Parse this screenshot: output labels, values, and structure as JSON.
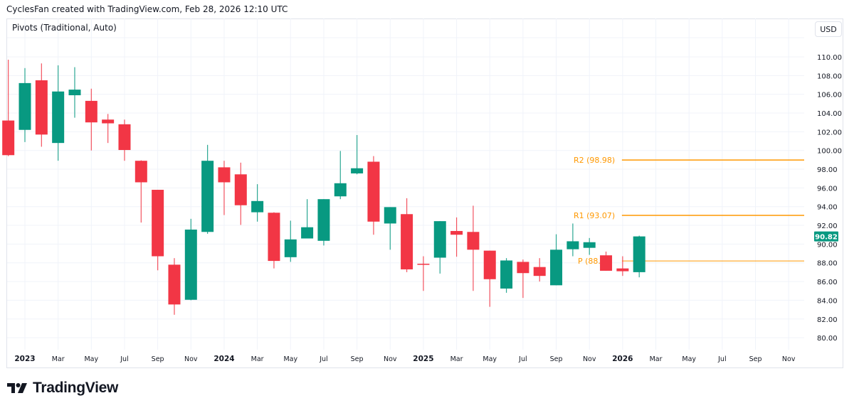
{
  "header": {
    "attribution": "CyclesFan created with TradingView.com, Feb 28, 2026 12:10 UTC"
  },
  "indicator": {
    "label": "Pivots (Traditional, Auto)"
  },
  "price_axis": {
    "currency": "USD"
  },
  "branding": {
    "logo_text": "TradingView"
  },
  "colors": {
    "up": "#089981",
    "down": "#F23645",
    "pivot": "#FF9800",
    "grid": "#f0f3fa",
    "text": "#131722"
  },
  "chart_data": {
    "type": "candlestick",
    "timeframe": "monthly",
    "ylim": [
      79,
      111
    ],
    "grid": true,
    "y_ticks": [
      "80.00",
      "82.00",
      "84.00",
      "86.00",
      "88.00",
      "90.00",
      "92.00",
      "94.00",
      "96.00",
      "98.00",
      "100.00",
      "102.00",
      "104.00",
      "106.00",
      "108.00",
      "110.00"
    ],
    "x_ticks": [
      {
        "month": "2023-01",
        "label": "2023"
      },
      {
        "month": "2023-03",
        "label": "Mar"
      },
      {
        "month": "2023-05",
        "label": "May"
      },
      {
        "month": "2023-07",
        "label": "Jul"
      },
      {
        "month": "2023-09",
        "label": "Sep"
      },
      {
        "month": "2023-11",
        "label": "Nov"
      },
      {
        "month": "2024-01",
        "label": "2024"
      },
      {
        "month": "2024-03",
        "label": "Mar"
      },
      {
        "month": "2024-05",
        "label": "May"
      },
      {
        "month": "2024-07",
        "label": "Jul"
      },
      {
        "month": "2024-09",
        "label": "Sep"
      },
      {
        "month": "2024-11",
        "label": "Nov"
      },
      {
        "month": "2025-01",
        "label": "2025"
      },
      {
        "month": "2025-03",
        "label": "Mar"
      },
      {
        "month": "2025-05",
        "label": "May"
      },
      {
        "month": "2025-07",
        "label": "Jul"
      },
      {
        "month": "2025-09",
        "label": "Sep"
      },
      {
        "month": "2025-11",
        "label": "Nov"
      },
      {
        "month": "2026-01",
        "label": "2026"
      },
      {
        "month": "2026-03",
        "label": "Mar"
      },
      {
        "month": "2026-05",
        "label": "May"
      },
      {
        "month": "2026-07",
        "label": "Jul"
      },
      {
        "month": "2026-09",
        "label": "Sep"
      },
      {
        "month": "2026-11",
        "label": "Nov"
      }
    ],
    "x_range": [
      "2022-12",
      "2026-12"
    ],
    "candles": [
      {
        "month": "2022-12",
        "o": 103.2,
        "h": 109.7,
        "l": 99.4,
        "c": 99.5
      },
      {
        "month": "2023-01",
        "o": 102.2,
        "h": 108.8,
        "l": 100.9,
        "c": 107.2
      },
      {
        "month": "2023-02",
        "o": 107.5,
        "h": 109.3,
        "l": 100.4,
        "c": 101.7
      },
      {
        "month": "2023-03",
        "o": 100.8,
        "h": 109.1,
        "l": 98.9,
        "c": 106.3
      },
      {
        "month": "2023-04",
        "o": 105.9,
        "h": 108.9,
        "l": 103.5,
        "c": 106.5
      },
      {
        "month": "2023-05",
        "o": 105.3,
        "h": 106.6,
        "l": 100.0,
        "c": 103.0
      },
      {
        "month": "2023-06",
        "o": 103.3,
        "h": 103.9,
        "l": 100.8,
        "c": 102.9
      },
      {
        "month": "2023-07",
        "o": 102.8,
        "h": 103.3,
        "l": 98.9,
        "c": 100.05
      },
      {
        "month": "2023-08",
        "o": 98.9,
        "h": 98.95,
        "l": 92.3,
        "c": 96.6
      },
      {
        "month": "2023-09",
        "o": 95.8,
        "h": 95.8,
        "l": 87.2,
        "c": 88.7
      },
      {
        "month": "2023-10",
        "o": 87.8,
        "h": 88.5,
        "l": 82.45,
        "c": 83.55
      },
      {
        "month": "2023-11",
        "o": 84.05,
        "h": 92.7,
        "l": 84.0,
        "c": 91.55
      },
      {
        "month": "2023-12",
        "o": 91.3,
        "h": 100.6,
        "l": 91.1,
        "c": 98.9
      },
      {
        "month": "2024-01",
        "o": 98.2,
        "h": 98.9,
        "l": 93.1,
        "c": 96.6
      },
      {
        "month": "2024-02",
        "o": 97.45,
        "h": 98.7,
        "l": 92.05,
        "c": 94.15
      },
      {
        "month": "2024-03",
        "o": 93.4,
        "h": 96.4,
        "l": 92.4,
        "c": 94.6
      },
      {
        "month": "2024-04",
        "o": 93.35,
        "h": 93.4,
        "l": 87.4,
        "c": 88.2
      },
      {
        "month": "2024-05",
        "o": 88.6,
        "h": 92.5,
        "l": 88.1,
        "c": 90.5
      },
      {
        "month": "2024-06",
        "o": 90.6,
        "h": 94.8,
        "l": 90.6,
        "c": 91.8
      },
      {
        "month": "2024-07",
        "o": 90.35,
        "h": 94.8,
        "l": 89.85,
        "c": 94.8
      },
      {
        "month": "2024-08",
        "o": 95.1,
        "h": 99.95,
        "l": 94.8,
        "c": 96.5
      },
      {
        "month": "2024-09",
        "o": 97.55,
        "h": 101.65,
        "l": 97.45,
        "c": 98.1
      },
      {
        "month": "2024-10",
        "o": 98.8,
        "h": 99.4,
        "l": 91.0,
        "c": 92.4
      },
      {
        "month": "2024-11",
        "o": 92.2,
        "h": 93.95,
        "l": 89.4,
        "c": 93.95
      },
      {
        "month": "2024-12",
        "o": 93.2,
        "h": 94.9,
        "l": 87.0,
        "c": 87.3
      },
      {
        "month": "2025-01",
        "o": 87.9,
        "h": 88.7,
        "l": 85.0,
        "c": 87.8
      },
      {
        "month": "2025-02",
        "o": 88.55,
        "h": 92.45,
        "l": 86.85,
        "c": 92.45
      },
      {
        "month": "2025-03",
        "o": 91.4,
        "h": 92.85,
        "l": 88.65,
        "c": 91.0
      },
      {
        "month": "2025-04",
        "o": 91.3,
        "h": 94.1,
        "l": 85.0,
        "c": 89.4
      },
      {
        "month": "2025-05",
        "o": 89.3,
        "h": 89.3,
        "l": 83.3,
        "c": 86.25
      },
      {
        "month": "2025-06",
        "o": 85.25,
        "h": 88.5,
        "l": 84.8,
        "c": 88.25
      },
      {
        "month": "2025-07",
        "o": 88.1,
        "h": 88.35,
        "l": 84.25,
        "c": 86.9
      },
      {
        "month": "2025-08",
        "o": 87.55,
        "h": 88.5,
        "l": 86.0,
        "c": 86.6
      },
      {
        "month": "2025-09",
        "o": 85.6,
        "h": 91.05,
        "l": 85.6,
        "c": 89.4
      },
      {
        "month": "2025-10",
        "o": 89.45,
        "h": 92.2,
        "l": 88.7,
        "c": 90.3
      },
      {
        "month": "2025-11",
        "o": 89.6,
        "h": 90.65,
        "l": 88.85,
        "c": 90.2
      },
      {
        "month": "2025-12",
        "o": 88.8,
        "h": 89.2,
        "l": 87.15,
        "c": 87.15
      },
      {
        "month": "2026-01",
        "o": 87.4,
        "h": 88.7,
        "l": 86.6,
        "c": 87.1
      },
      {
        "month": "2026-02",
        "o": 87.0,
        "h": 90.9,
        "l": 86.45,
        "c": 90.82
      }
    ],
    "last_price": "90.82",
    "last_price_value": 90.82,
    "pivots": [
      {
        "name": "R2",
        "value": 98.98,
        "label": "R2 (98.98)"
      },
      {
        "name": "R1",
        "value": 93.07,
        "label": "R1 (93.07)"
      },
      {
        "name": "P",
        "value": 88.2,
        "label": "P (88."
      }
    ],
    "pivot_period_start": "2026-01"
  }
}
